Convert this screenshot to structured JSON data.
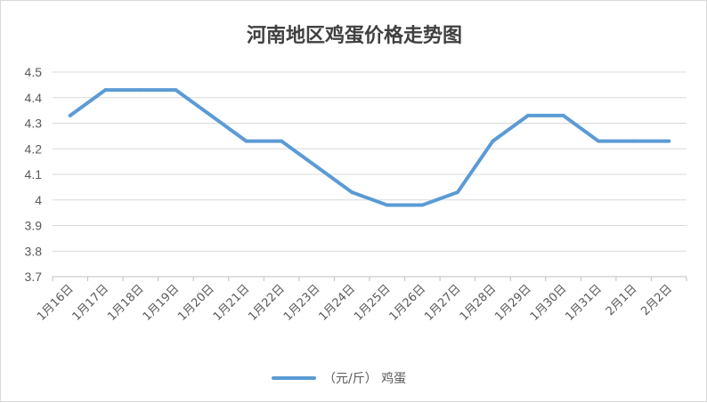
{
  "chart_data": {
    "type": "line",
    "title": "河南地区鸡蛋价格走势图",
    "categories": [
      "1月16日",
      "1月17日",
      "1月18日",
      "1月19日",
      "1月20日",
      "1月21日",
      "1月22日",
      "1月23日",
      "1月24日",
      "1月25日",
      "1月26日",
      "1月27日",
      "1月28日",
      "1月29日",
      "1月30日",
      "1月31日",
      "2月1日",
      "2月2日"
    ],
    "series": [
      {
        "name": "（元/斤） 鸡蛋",
        "values": [
          4.33,
          4.43,
          4.43,
          4.43,
          4.33,
          4.23,
          4.23,
          4.13,
          4.03,
          3.98,
          3.98,
          4.03,
          4.23,
          4.33,
          4.33,
          4.23,
          4.23,
          4.23
        ],
        "color": "#5b9bd5"
      }
    ],
    "yticks": [
      "4.5",
      "4.4",
      "4.3",
      "4.2",
      "4.1",
      "4",
      "3.9",
      "3.8",
      "3.7"
    ],
    "ylim": [
      3.7,
      4.5
    ],
    "grid": true,
    "legend_position": "bottom"
  }
}
